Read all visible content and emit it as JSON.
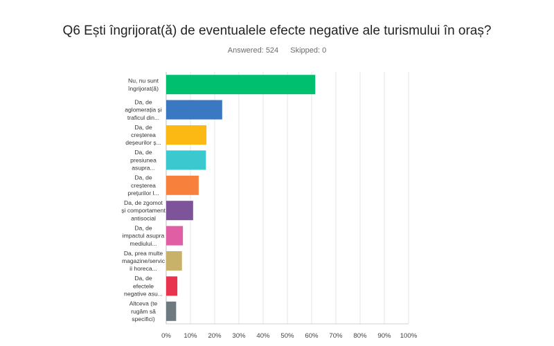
{
  "question": {
    "title": "Q6 Ești îngrijorat(ă) de eventualele efecte negative ale turismului în oraș?"
  },
  "summary": {
    "answered_label": "Answered:",
    "answered": "524",
    "skipped_label": "Skipped:",
    "skipped": "0"
  },
  "chart_data": {
    "type": "bar",
    "orientation": "horizontal",
    "categories": [
      [
        "Nu, nu sunt",
        "îngrijorat(ă)"
      ],
      [
        "Da, de",
        "aglomerația și",
        "traficul din..."
      ],
      [
        "Da, de",
        "creșterea",
        "deșeurilor ș..."
      ],
      [
        "Da, de",
        "presiunea",
        "asupra..."
      ],
      [
        "Da, de",
        "creșterea",
        "prețurilor l..."
      ],
      [
        "Da, de zgomot",
        "și comportament",
        "antisocial"
      ],
      [
        "Da, de",
        "impactul asupra",
        "mediului..."
      ],
      [
        "Da, prea multe",
        "magazine/servic",
        "ii horeca..."
      ],
      [
        "Da, de",
        "efectele",
        "negative asu..."
      ],
      [
        "Altceva (te",
        "rugăm să",
        "specifici)"
      ]
    ],
    "values": [
      61.5,
      23.1,
      16.6,
      16.4,
      13.4,
      11.1,
      6.9,
      6.5,
      4.6,
      4.1
    ],
    "colors": [
      "#00bf6f",
      "#3b78c2",
      "#fdb913",
      "#3bc8cf",
      "#f7813c",
      "#7d5499",
      "#e05ea3",
      "#c8b26a",
      "#e8344e",
      "#6f7a80"
    ],
    "x_ticks": [
      "0%",
      "10%",
      "20%",
      "30%",
      "40%",
      "50%",
      "60%",
      "70%",
      "80%",
      "90%",
      "100%"
    ],
    "xlim": [
      0,
      100
    ],
    "grid": true
  }
}
